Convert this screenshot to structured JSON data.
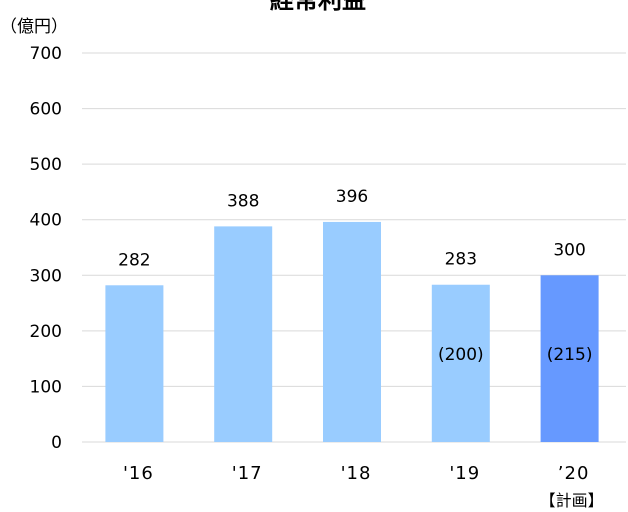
{
  "chart_data": {
    "type": "bar",
    "title": "経常利益",
    "unit_label": "（億円）",
    "categories": [
      "'16",
      "'17",
      "'18",
      "'19",
      "’20"
    ],
    "values": [
      282,
      388,
      396,
      283,
      300
    ],
    "bar_labels": [
      "282",
      "388",
      "396",
      "283",
      "300"
    ],
    "inner_labels": [
      "",
      "",
      "",
      "(200)",
      "(215)"
    ],
    "y_ticks": [
      "0",
      "100",
      "200",
      "300",
      "400",
      "500",
      "600",
      "700"
    ],
    "ylim": [
      0,
      700
    ],
    "category_notes": [
      "",
      "",
      "",
      "",
      "【計画】"
    ],
    "colors": {
      "bar": "#99ccff",
      "bar_highlight": "#6699ff",
      "grid": "#d9d9d9"
    },
    "highlight_index": 4,
    "grid": true
  }
}
